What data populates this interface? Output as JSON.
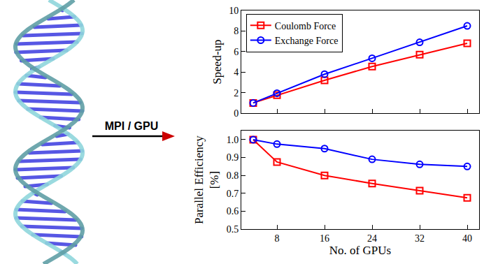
{
  "arrow_label": "MPI / GPU",
  "chart_data": [
    {
      "type": "line",
      "y_label": [
        "Speed-up"
      ],
      "x": [
        4,
        8,
        16,
        24,
        32,
        40
      ],
      "series": [
        {
          "name": "Coulomb Force",
          "color": "#ff0000",
          "marker": "square",
          "line_style": "solid",
          "values": [
            1.0,
            1.75,
            3.2,
            4.55,
            5.7,
            6.8
          ]
        },
        {
          "name": "Exchange Force",
          "color": "#0000ff",
          "marker": "circle",
          "line_style": "solid",
          "values": [
            1.0,
            1.95,
            3.8,
            5.35,
            6.9,
            8.5
          ]
        }
      ],
      "xlim": [
        2,
        42
      ],
      "xticks": [
        8,
        16,
        24,
        32,
        40
      ],
      "ylim": [
        0,
        10
      ],
      "yticks": [
        0,
        2,
        4,
        6,
        8,
        10
      ],
      "grid": false,
      "legend": "upper left",
      "tick_labels": "y"
    },
    {
      "type": "line",
      "x_label": "No. of GPUs",
      "y_label": [
        "Parallel Efficiency",
        "[%]"
      ],
      "x": [
        4,
        8,
        16,
        24,
        32,
        40
      ],
      "series": [
        {
          "color": "#ff0000",
          "marker": "square",
          "line_style": "solid",
          "values": [
            1.0,
            0.875,
            0.8,
            0.755,
            0.715,
            0.675
          ]
        },
        {
          "color": "#0000ff",
          "marker": "circle",
          "line_style": "solid",
          "values": [
            1.0,
            0.975,
            0.95,
            0.89,
            0.862,
            0.85
          ]
        }
      ],
      "xlim": [
        2,
        42
      ],
      "xticks": [
        8,
        16,
        24,
        32,
        40
      ],
      "ylim": [
        0.5,
        1.05
      ],
      "yticks": [
        0.5,
        0.6,
        0.7,
        0.8,
        0.9,
        {
          "value": 1.0,
          "label": "1.0"
        }
      ],
      "grid": false
    }
  ]
}
